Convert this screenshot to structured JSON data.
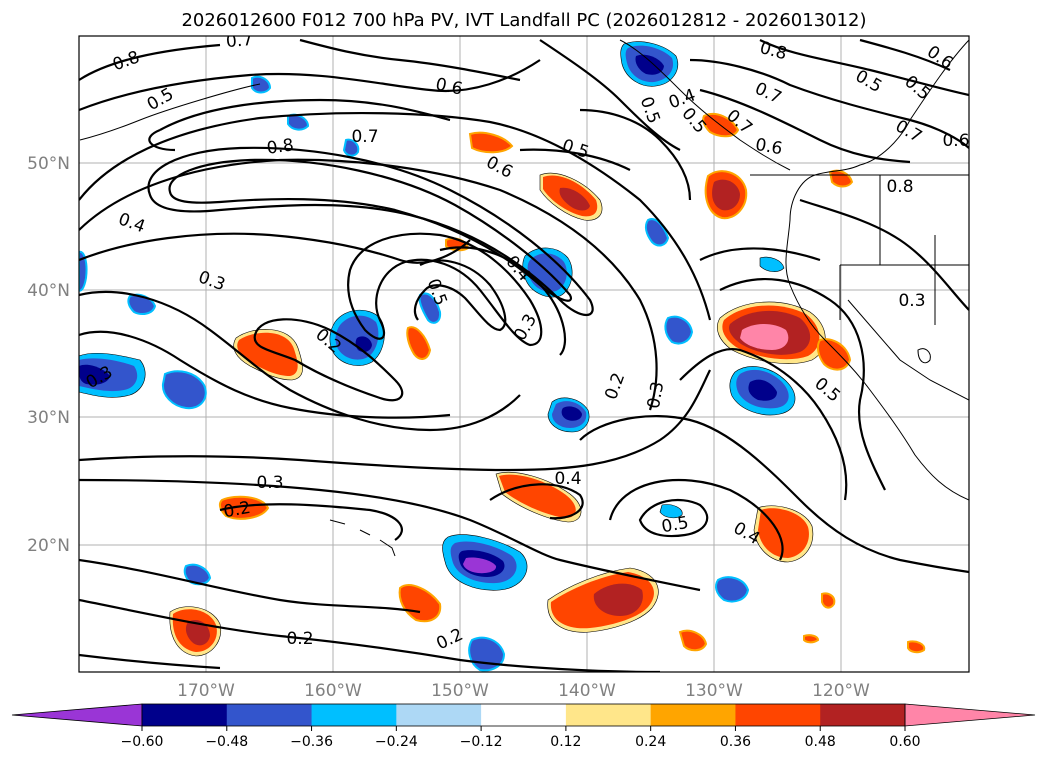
{
  "title": "2026012600 F012 700 hPa PV, IVT Landfall PC (2026012812 - 2026013012)",
  "map": {
    "lon_labels": [
      "170°W",
      "160°W",
      "150°W",
      "140°W",
      "130°W",
      "120°W"
    ],
    "lat_labels": [
      "50°N",
      "40°N",
      "30°N",
      "20°N"
    ],
    "colors": {
      "neg_060": "#9a35d6",
      "neg_048": "#00008b",
      "neg_036": "#3355cc",
      "neg_024": "#00bfff",
      "neg_012": "#add8f5",
      "pos_012": "#ffe68a",
      "pos_024": "#ffa500",
      "pos_036": "#ff4500",
      "pos_048": "#b22222",
      "pos_060": "#ff85a8"
    },
    "contour_labels": [
      {
        "id": "c1",
        "text": "0.8"
      },
      {
        "id": "c2",
        "text": "0.5"
      },
      {
        "id": "c3",
        "text": "0.7"
      },
      {
        "id": "c4",
        "text": "0.6"
      },
      {
        "id": "c5",
        "text": "0.8"
      },
      {
        "id": "c6",
        "text": "0.7"
      },
      {
        "id": "c7",
        "text": "0.5"
      },
      {
        "id": "c8",
        "text": "0.6"
      },
      {
        "id": "c9",
        "text": "0.4"
      },
      {
        "id": "c10",
        "text": "0.3"
      },
      {
        "id": "c11",
        "text": "0.2"
      },
      {
        "id": "c12",
        "text": "0.5"
      },
      {
        "id": "c13",
        "text": "0.4"
      },
      {
        "id": "c14",
        "text": "0.3"
      },
      {
        "id": "c15",
        "text": "0.2"
      },
      {
        "id": "c16",
        "text": "0.3"
      },
      {
        "id": "c17",
        "text": "0.3"
      },
      {
        "id": "c18",
        "text": "0.3"
      },
      {
        "id": "c19",
        "text": "0.2"
      },
      {
        "id": "c20",
        "text": "0.4"
      },
      {
        "id": "c21",
        "text": "0.5"
      },
      {
        "id": "c22",
        "text": "0.4"
      },
      {
        "id": "c23",
        "text": "0.2"
      },
      {
        "id": "c24",
        "text": "0.2"
      },
      {
        "id": "c25",
        "text": "0.8"
      },
      {
        "id": "c26",
        "text": "0.6"
      },
      {
        "id": "c27",
        "text": "0.7"
      },
      {
        "id": "c28",
        "text": "0.5"
      },
      {
        "id": "c29",
        "text": "0.5"
      },
      {
        "id": "c30",
        "text": "0.7"
      },
      {
        "id": "c31",
        "text": "0.6"
      },
      {
        "id": "c32",
        "text": "0.8"
      },
      {
        "id": "c33",
        "text": "0.3"
      },
      {
        "id": "c34",
        "text": "0.5"
      },
      {
        "id": "c35",
        "text": "0.6"
      },
      {
        "id": "c36",
        "text": "0.5"
      },
      {
        "id": "c37",
        "text": "0.4"
      },
      {
        "id": "c38",
        "text": "0.5"
      },
      {
        "id": "c39",
        "text": "0.7"
      }
    ]
  },
  "colorbar": {
    "tick_labels": [
      "−0.60",
      "−0.48",
      "−0.36",
      "−0.24",
      "−0.12",
      "0.12",
      "0.24",
      "0.36",
      "0.48",
      "0.60"
    ],
    "colors": [
      "#9a35d6",
      "#00008b",
      "#3355cc",
      "#00bfff",
      "#add8f5",
      "#ffffff",
      "#ffe68a",
      "#ffa500",
      "#ff4500",
      "#b22222",
      "#ff85a8"
    ]
  }
}
